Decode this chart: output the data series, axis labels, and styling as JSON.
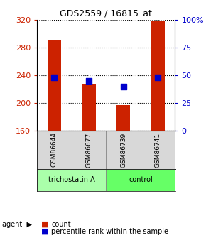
{
  "title": "GDS2559 / 16815_at",
  "samples": [
    "GSM86644",
    "GSM86677",
    "GSM86739",
    "GSM86741"
  ],
  "counts": [
    290,
    228,
    197,
    318
  ],
  "percentiles": [
    48,
    45,
    40,
    48
  ],
  "ylim_left": [
    160,
    320
  ],
  "ylim_right": [
    0,
    100
  ],
  "yticks_left": [
    160,
    200,
    240,
    280,
    320
  ],
  "yticks_right": [
    0,
    25,
    50,
    75,
    100
  ],
  "ytick_labels_right": [
    "0",
    "25",
    "50",
    "75",
    "100%"
  ],
  "groups": [
    {
      "label": "trichostatin A",
      "samples": [
        0,
        1
      ],
      "color": "#aaffaa"
    },
    {
      "label": "control",
      "samples": [
        2,
        3
      ],
      "color": "#66ff66"
    }
  ],
  "bar_color": "#cc2200",
  "dot_color": "#0000cc",
  "bar_width": 0.4,
  "agent_label": "agent",
  "legend_count_label": "count",
  "legend_pct_label": "percentile rank within the sample",
  "background_color": "#ffffff",
  "plot_bg_color": "#ffffff",
  "grid_color": "#000000",
  "axis_color_left": "#cc2200",
  "axis_color_right": "#0000cc"
}
